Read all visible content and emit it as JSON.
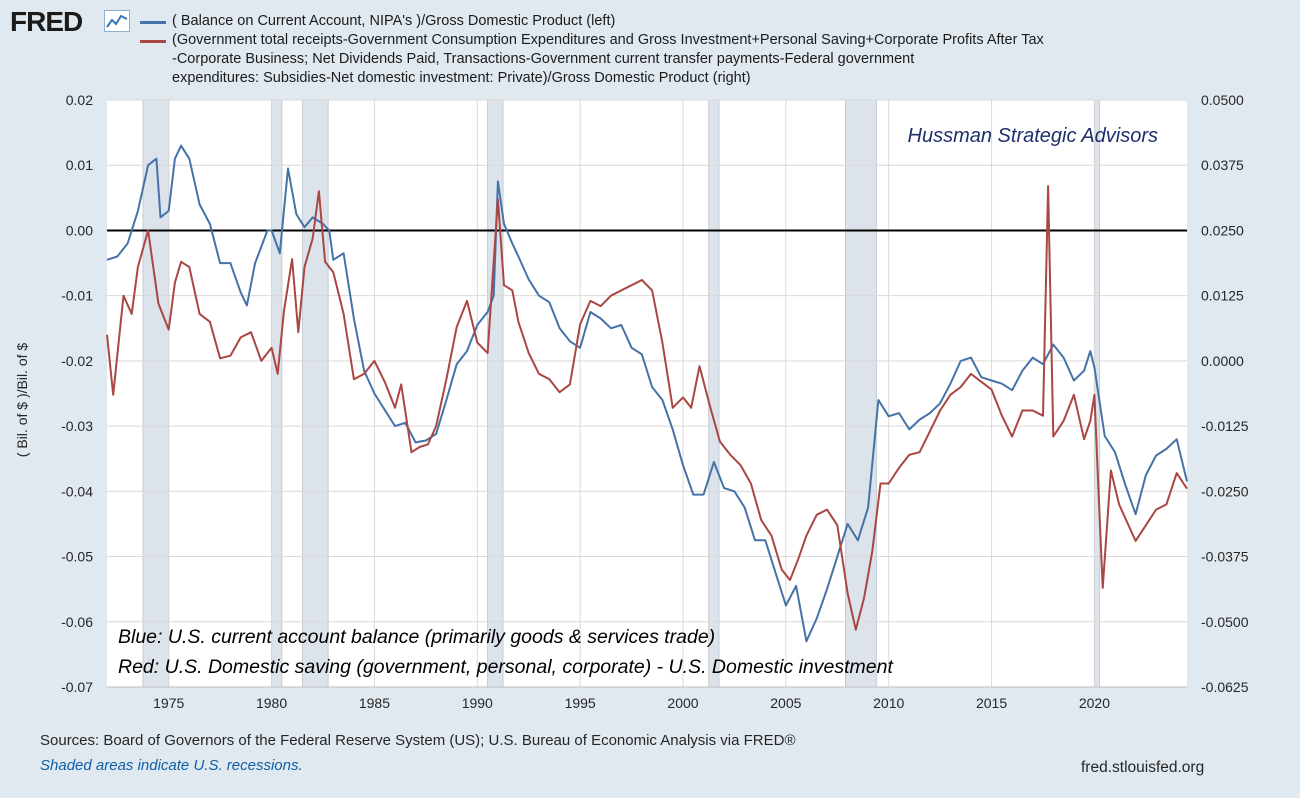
{
  "header": {
    "logo_text": "FRED",
    "logo_icon": "line-chart-icon"
  },
  "legend": [
    {
      "color": "#4572a7",
      "text": "( Balance on Current Account, NIPA's )/Gross Domestic Product (left)"
    },
    {
      "color": "#aa4643",
      "text": "(Government total receipts-Government Consumption Expenditures and Gross Investment+Personal Saving+Corporate Profits After Tax\n-Corporate Business; Net Dividends Paid, Transactions-Government current transfer payments-Federal government\nexpenditures: Subsidies-Net domestic investment: Private)/Gross Domestic Product (right)"
    }
  ],
  "chart_data": {
    "type": "line",
    "ylabel": "( Bil. of $ )/Bil. of $",
    "x_range": [
      1972.0,
      2024.5
    ],
    "x_ticks": [
      1975,
      1980,
      1985,
      1990,
      1995,
      2000,
      2005,
      2010,
      2015,
      2020
    ],
    "y_left": {
      "range": [
        -0.07,
        0.02
      ],
      "ticks": [
        "0.02",
        "0.01",
        "0.00",
        "-0.01",
        "-0.02",
        "-0.03",
        "-0.04",
        "-0.05",
        "-0.06",
        "-0.07"
      ]
    },
    "y_right": {
      "range": [
        -0.0625,
        0.05
      ],
      "ticks": [
        "0.0500",
        "0.0375",
        "0.0250",
        "0.0125",
        "0.0000",
        "-0.0125",
        "-0.0250",
        "-0.0375",
        "-0.0500",
        "-0.0625"
      ]
    },
    "zero_line_left": 0.0,
    "recessions": [
      [
        1973.75,
        1975.0
      ],
      [
        1980.0,
        1980.5
      ],
      [
        1981.5,
        1982.75
      ],
      [
        1990.5,
        1991.25
      ],
      [
        2001.25,
        2001.75
      ],
      [
        2007.9,
        2009.4
      ],
      [
        2020.0,
        2020.25
      ]
    ],
    "annotations": {
      "watermark": "Hussman Strategic Advisors",
      "note_blue": "Blue: U.S. current account balance (primarily goods & services trade)",
      "note_red": "Red: U.S. Domestic saving (government, personal, corporate) - U.S. Domestic investment"
    },
    "series": [
      {
        "name": "( Balance on Current Account, NIPA's )/Gross Domestic Product (left)",
        "axis": "left",
        "color": "#4572a7",
        "points": [
          [
            1972.0,
            -0.0045
          ],
          [
            1972.5,
            -0.004
          ],
          [
            1973.0,
            -0.002
          ],
          [
            1973.5,
            0.003
          ],
          [
            1974.0,
            0.01
          ],
          [
            1974.4,
            0.011
          ],
          [
            1974.6,
            0.002
          ],
          [
            1975.0,
            0.003
          ],
          [
            1975.3,
            0.011
          ],
          [
            1975.6,
            0.013
          ],
          [
            1976.0,
            0.011
          ],
          [
            1976.5,
            0.004
          ],
          [
            1977.0,
            0.001
          ],
          [
            1977.5,
            -0.005
          ],
          [
            1978.0,
            -0.005
          ],
          [
            1978.5,
            -0.0095
          ],
          [
            1978.8,
            -0.0115
          ],
          [
            1979.2,
            -0.005
          ],
          [
            1979.8,
            0.0
          ],
          [
            1980.0,
            0.0
          ],
          [
            1980.4,
            -0.0035
          ],
          [
            1980.8,
            0.0095
          ],
          [
            1981.2,
            0.0025
          ],
          [
            1981.6,
            0.0005
          ],
          [
            1982.0,
            0.002
          ],
          [
            1982.5,
            0.001
          ],
          [
            1982.8,
            0.0
          ],
          [
            1983.0,
            -0.0045
          ],
          [
            1983.5,
            -0.0035
          ],
          [
            1984.0,
            -0.0135
          ],
          [
            1984.5,
            -0.0215
          ],
          [
            1985.0,
            -0.025
          ],
          [
            1985.5,
            -0.0275
          ],
          [
            1986.0,
            -0.03
          ],
          [
            1986.5,
            -0.0295
          ],
          [
            1987.0,
            -0.0325
          ],
          [
            1987.5,
            -0.0322
          ],
          [
            1988.0,
            -0.0312
          ],
          [
            1988.5,
            -0.026
          ],
          [
            1989.0,
            -0.0205
          ],
          [
            1989.5,
            -0.0185
          ],
          [
            1990.0,
            -0.0145
          ],
          [
            1990.5,
            -0.0125
          ],
          [
            1990.8,
            -0.01
          ],
          [
            1991.0,
            0.0075
          ],
          [
            1991.3,
            0.001
          ],
          [
            1991.7,
            -0.002
          ],
          [
            1992.0,
            -0.004
          ],
          [
            1992.5,
            -0.0075
          ],
          [
            1993.0,
            -0.01
          ],
          [
            1993.5,
            -0.011
          ],
          [
            1994.0,
            -0.015
          ],
          [
            1994.5,
            -0.017
          ],
          [
            1995.0,
            -0.018
          ],
          [
            1995.5,
            -0.0125
          ],
          [
            1996.0,
            -0.0135
          ],
          [
            1996.5,
            -0.015
          ],
          [
            1997.0,
            -0.0145
          ],
          [
            1997.5,
            -0.018
          ],
          [
            1998.0,
            -0.019
          ],
          [
            1998.5,
            -0.024
          ],
          [
            1999.0,
            -0.026
          ],
          [
            1999.5,
            -0.0305
          ],
          [
            2000.0,
            -0.036
          ],
          [
            2000.5,
            -0.0405
          ],
          [
            2001.0,
            -0.0405
          ],
          [
            2001.5,
            -0.0355
          ],
          [
            2002.0,
            -0.0395
          ],
          [
            2002.5,
            -0.04
          ],
          [
            2003.0,
            -0.0425
          ],
          [
            2003.5,
            -0.0475
          ],
          [
            2004.0,
            -0.0475
          ],
          [
            2004.5,
            -0.0525
          ],
          [
            2005.0,
            -0.0575
          ],
          [
            2005.5,
            -0.0545
          ],
          [
            2006.0,
            -0.063
          ],
          [
            2006.5,
            -0.0595
          ],
          [
            2007.0,
            -0.055
          ],
          [
            2007.5,
            -0.05
          ],
          [
            2008.0,
            -0.045
          ],
          [
            2008.5,
            -0.0475
          ],
          [
            2009.0,
            -0.0425
          ],
          [
            2009.5,
            -0.026
          ],
          [
            2010.0,
            -0.0285
          ],
          [
            2010.5,
            -0.028
          ],
          [
            2011.0,
            -0.0305
          ],
          [
            2011.5,
            -0.029
          ],
          [
            2012.0,
            -0.028
          ],
          [
            2012.5,
            -0.0265
          ],
          [
            2013.0,
            -0.0235
          ],
          [
            2013.5,
            -0.02
          ],
          [
            2014.0,
            -0.0195
          ],
          [
            2014.5,
            -0.0225
          ],
          [
            2015.0,
            -0.023
          ],
          [
            2015.5,
            -0.0235
          ],
          [
            2016.0,
            -0.0245
          ],
          [
            2016.5,
            -0.0215
          ],
          [
            2017.0,
            -0.0195
          ],
          [
            2017.5,
            -0.0205
          ],
          [
            2018.0,
            -0.0175
          ],
          [
            2018.5,
            -0.0195
          ],
          [
            2019.0,
            -0.023
          ],
          [
            2019.5,
            -0.0215
          ],
          [
            2019.8,
            -0.0185
          ],
          [
            2020.0,
            -0.021
          ],
          [
            2020.5,
            -0.0315
          ],
          [
            2021.0,
            -0.034
          ],
          [
            2021.5,
            -0.039
          ],
          [
            2022.0,
            -0.0435
          ],
          [
            2022.5,
            -0.0375
          ],
          [
            2023.0,
            -0.0345
          ],
          [
            2023.5,
            -0.0335
          ],
          [
            2024.0,
            -0.032
          ],
          [
            2024.5,
            -0.0385
          ]
        ]
      },
      {
        "name": "(Government total receipts-...)/Gross Domestic Product (right)",
        "axis": "right",
        "color": "#aa4643",
        "points": [
          [
            1972.0,
            0.005
          ],
          [
            1972.3,
            -0.0065
          ],
          [
            1972.8,
            0.0125
          ],
          [
            1973.2,
            0.009
          ],
          [
            1973.5,
            0.018
          ],
          [
            1974.0,
            0.025
          ],
          [
            1974.5,
            0.011
          ],
          [
            1975.0,
            0.006
          ],
          [
            1975.3,
            0.015
          ],
          [
            1975.6,
            0.019
          ],
          [
            1976.0,
            0.018
          ],
          [
            1976.5,
            0.009
          ],
          [
            1977.0,
            0.0075
          ],
          [
            1977.5,
            0.0005
          ],
          [
            1978.0,
            0.001
          ],
          [
            1978.5,
            0.0045
          ],
          [
            1979.0,
            0.0055
          ],
          [
            1979.5,
            0.0
          ],
          [
            1980.0,
            0.0025
          ],
          [
            1980.3,
            -0.0025
          ],
          [
            1980.6,
            0.0095
          ],
          [
            1981.0,
            0.0195
          ],
          [
            1981.3,
            0.0055
          ],
          [
            1981.6,
            0.018
          ],
          [
            1982.0,
            0.0235
          ],
          [
            1982.3,
            0.0325
          ],
          [
            1982.6,
            0.019
          ],
          [
            1983.0,
            0.017
          ],
          [
            1983.5,
            0.009
          ],
          [
            1984.0,
            -0.0035
          ],
          [
            1984.5,
            -0.0025
          ],
          [
            1985.0,
            0.0
          ],
          [
            1985.5,
            -0.004
          ],
          [
            1986.0,
            -0.009
          ],
          [
            1986.3,
            -0.0045
          ],
          [
            1986.8,
            -0.0175
          ],
          [
            1987.2,
            -0.0165
          ],
          [
            1987.6,
            -0.016
          ],
          [
            1988.0,
            -0.0125
          ],
          [
            1988.5,
            -0.0035
          ],
          [
            1989.0,
            0.0065
          ],
          [
            1989.5,
            0.0115
          ],
          [
            1990.0,
            0.0035
          ],
          [
            1990.5,
            0.0015
          ],
          [
            1991.0,
            0.031
          ],
          [
            1991.3,
            0.0145
          ],
          [
            1991.7,
            0.0135
          ],
          [
            1992.0,
            0.0075
          ],
          [
            1992.5,
            0.0015
          ],
          [
            1993.0,
            -0.0025
          ],
          [
            1993.5,
            -0.0035
          ],
          [
            1994.0,
            -0.006
          ],
          [
            1994.5,
            -0.0045
          ],
          [
            1995.0,
            0.007
          ],
          [
            1995.5,
            0.0115
          ],
          [
            1996.0,
            0.0105
          ],
          [
            1996.5,
            0.0125
          ],
          [
            1997.0,
            0.0135
          ],
          [
            1997.5,
            0.0145
          ],
          [
            1998.0,
            0.0155
          ],
          [
            1998.5,
            0.0135
          ],
          [
            1999.0,
            0.0035
          ],
          [
            1999.5,
            -0.009
          ],
          [
            2000.0,
            -0.007
          ],
          [
            2000.4,
            -0.009
          ],
          [
            2000.8,
            -0.001
          ],
          [
            2001.3,
            -0.0085
          ],
          [
            2001.8,
            -0.0155
          ],
          [
            2002.3,
            -0.018
          ],
          [
            2002.8,
            -0.02
          ],
          [
            2003.3,
            -0.0235
          ],
          [
            2003.8,
            -0.0305
          ],
          [
            2004.3,
            -0.0335
          ],
          [
            2004.8,
            -0.04
          ],
          [
            2005.2,
            -0.042
          ],
          [
            2005.6,
            -0.038
          ],
          [
            2006.0,
            -0.0335
          ],
          [
            2006.5,
            -0.0295
          ],
          [
            2007.0,
            -0.0285
          ],
          [
            2007.5,
            -0.0315
          ],
          [
            2008.0,
            -0.0445
          ],
          [
            2008.4,
            -0.0515
          ],
          [
            2008.8,
            -0.0455
          ],
          [
            2009.2,
            -0.0365
          ],
          [
            2009.6,
            -0.0235
          ],
          [
            2010.0,
            -0.0235
          ],
          [
            2010.5,
            -0.0205
          ],
          [
            2011.0,
            -0.018
          ],
          [
            2011.5,
            -0.0175
          ],
          [
            2012.0,
            -0.0135
          ],
          [
            2012.5,
            -0.0095
          ],
          [
            2013.0,
            -0.0065
          ],
          [
            2013.5,
            -0.005
          ],
          [
            2014.0,
            -0.0025
          ],
          [
            2014.5,
            -0.004
          ],
          [
            2015.0,
            -0.0055
          ],
          [
            2015.5,
            -0.0105
          ],
          [
            2016.0,
            -0.0145
          ],
          [
            2016.5,
            -0.0095
          ],
          [
            2017.0,
            -0.0095
          ],
          [
            2017.5,
            -0.0105
          ],
          [
            2017.75,
            0.0335
          ],
          [
            2018.0,
            -0.0145
          ],
          [
            2018.5,
            -0.0115
          ],
          [
            2019.0,
            -0.0065
          ],
          [
            2019.5,
            -0.015
          ],
          [
            2019.8,
            -0.0115
          ],
          [
            2020.0,
            -0.0065
          ],
          [
            2020.4,
            -0.0435
          ],
          [
            2020.8,
            -0.021
          ],
          [
            2021.2,
            -0.0275
          ],
          [
            2021.6,
            -0.031
          ],
          [
            2022.0,
            -0.0345
          ],
          [
            2022.5,
            -0.0315
          ],
          [
            2023.0,
            -0.0285
          ],
          [
            2023.5,
            -0.0275
          ],
          [
            2024.0,
            -0.0215
          ],
          [
            2024.5,
            -0.0245
          ]
        ]
      }
    ]
  },
  "footer": {
    "sources": "Sources: Board of Governors of the Federal Reserve System (US); U.S. Bureau of Economic Analysis via FRED®",
    "recessions_note": "Shaded areas indicate U.S. recessions.",
    "url": "fred.stlouisfed.org"
  }
}
